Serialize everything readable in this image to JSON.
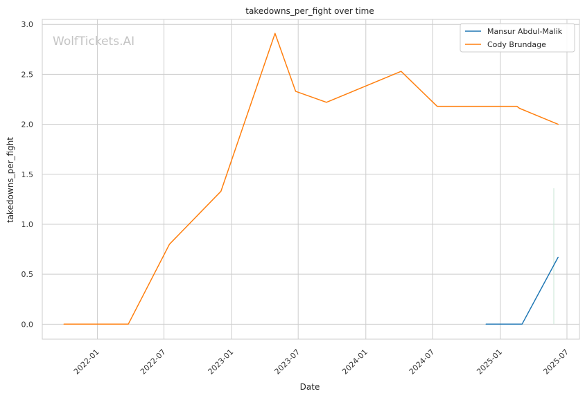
{
  "chart_data": {
    "type": "line",
    "title": "takedowns_per_fight over time",
    "xlabel": "Date",
    "ylabel": "takedowns_per_fight",
    "watermark": "WolfTickets.AI",
    "x_is_date": true,
    "xlim": [
      "2021-08-04",
      "2025-08-04"
    ],
    "ylim": [
      -0.15,
      3.05
    ],
    "x_ticks": [
      "2022-01-01",
      "2022-07-01",
      "2023-01-01",
      "2023-07-01",
      "2024-01-01",
      "2024-07-01",
      "2025-01-01",
      "2025-07-01"
    ],
    "x_tick_labels": [
      "2022-01",
      "2022-07",
      "2023-01",
      "2023-07",
      "2024-01",
      "2024-07",
      "2025-01",
      "2025-07"
    ],
    "y_ticks": [
      0.0,
      0.5,
      1.0,
      1.5,
      2.0,
      2.5,
      3.0
    ],
    "y_tick_labels": [
      "0.0",
      "0.5",
      "1.0",
      "1.5",
      "2.0",
      "2.5",
      "3.0"
    ],
    "grid": true,
    "legend_position": "top-right",
    "series": [
      {
        "name": "Mansur Abdul-Malik",
        "color": "#1f77b4",
        "points": [
          {
            "x": "2024-11-23",
            "y": 0.0
          },
          {
            "x": "2025-03-01",
            "y": 0.0
          },
          {
            "x": "2025-06-07",
            "y": 0.67
          }
        ]
      },
      {
        "name": "Cody Brundage",
        "color": "#ff7f0e",
        "points": [
          {
            "x": "2021-10-02",
            "y": 0.0
          },
          {
            "x": "2022-03-26",
            "y": 0.0
          },
          {
            "x": "2022-07-16",
            "y": 0.8
          },
          {
            "x": "2022-12-03",
            "y": 1.33
          },
          {
            "x": "2023-04-29",
            "y": 2.91
          },
          {
            "x": "2023-06-24",
            "y": 2.33
          },
          {
            "x": "2023-09-16",
            "y": 2.22
          },
          {
            "x": "2024-04-06",
            "y": 2.53
          },
          {
            "x": "2024-07-13",
            "y": 2.18
          },
          {
            "x": "2025-02-15",
            "y": 2.18
          },
          {
            "x": "2025-02-22",
            "y": 2.16
          },
          {
            "x": "2025-06-07",
            "y": 2.0
          }
        ]
      }
    ]
  }
}
